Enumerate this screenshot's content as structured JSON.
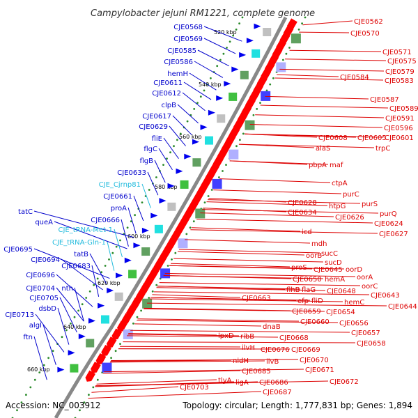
{
  "title": "Campylobacter jejuni RM1221, complete genome",
  "footer": {
    "accession": "Accession: NC_003912",
    "summary": "Topology: circular; Length: 1,777,831 bp; Genes: 1,894"
  },
  "colors": {
    "forward_labels": "#0000cc",
    "rna_labels": "#22bbdd",
    "reverse_labels": "#dd0000",
    "backbone": "#888888",
    "tick_dots": "#2a8a2a"
  },
  "kbp_marks": [
    "520 kbp",
    "540 kbp",
    "560 kbp",
    "580 kbp",
    "600 kbp",
    "620 kbp",
    "640 kbp",
    "660 kbp"
  ],
  "left_labels": [
    {
      "text": "CJE0568",
      "type": "gene"
    },
    {
      "text": "CJE0569",
      "type": "gene"
    },
    {
      "text": "CJE0585",
      "type": "gene"
    },
    {
      "text": "CJE0586",
      "type": "gene"
    },
    {
      "text": "hemH",
      "type": "gene"
    },
    {
      "text": "CJE0611",
      "type": "gene"
    },
    {
      "text": "CJE0612",
      "type": "gene"
    },
    {
      "text": "clpB",
      "type": "gene"
    },
    {
      "text": "CJE0617",
      "type": "gene"
    },
    {
      "text": "CJE0629",
      "type": "gene"
    },
    {
      "text": "fliE",
      "type": "gene"
    },
    {
      "text": "flgC",
      "type": "gene"
    },
    {
      "text": "flgB",
      "type": "gene"
    },
    {
      "text": "CJE0633",
      "type": "gene"
    },
    {
      "text": "CJE_Cjrnp81",
      "type": "rna"
    },
    {
      "text": "CJE0661",
      "type": "gene"
    },
    {
      "text": "proA",
      "type": "gene"
    },
    {
      "text": "tatC",
      "type": "gene"
    },
    {
      "text": "queA",
      "type": "gene"
    },
    {
      "text": "CJE0666",
      "type": "gene"
    },
    {
      "text": "CJE_tRNA-Met-1",
      "type": "rna"
    },
    {
      "text": "CJE_tRNA-Gln-1",
      "type": "rna"
    },
    {
      "text": "CJE0695",
      "type": "gene"
    },
    {
      "text": "tatB",
      "type": "gene"
    },
    {
      "text": "CJE0694",
      "type": "gene"
    },
    {
      "text": "CJE0683",
      "type": "gene"
    },
    {
      "text": "CJE0696",
      "type": "gene"
    },
    {
      "text": "CJE0704",
      "type": "gene"
    },
    {
      "text": "nth",
      "type": "gene"
    },
    {
      "text": "CJE0705",
      "type": "gene"
    },
    {
      "text": "dsbD",
      "type": "gene"
    },
    {
      "text": "CJE0713",
      "type": "gene"
    },
    {
      "text": "algI",
      "type": "gene"
    },
    {
      "text": "ftn",
      "type": "gene"
    }
  ],
  "right_labels": [
    {
      "text": "CJE0562"
    },
    {
      "text": "CJE0570"
    },
    {
      "text": "CJE0571"
    },
    {
      "text": "CJE0575"
    },
    {
      "text": "CJE0579"
    },
    {
      "text": "CJE0584"
    },
    {
      "text": "CJE0583"
    },
    {
      "text": "CJE0587"
    },
    {
      "text": "CJE0589"
    },
    {
      "text": "CJE0591"
    },
    {
      "text": "CJE0596"
    },
    {
      "text": "CJE0608"
    },
    {
      "text": "CJE0605"
    },
    {
      "text": "CJE0601"
    },
    {
      "text": "alaS"
    },
    {
      "text": "trpC"
    },
    {
      "text": "pbpA"
    },
    {
      "text": "maf"
    },
    {
      "text": "ctpA"
    },
    {
      "text": "purC"
    },
    {
      "text": "CJE0628"
    },
    {
      "text": "htpG"
    },
    {
      "text": "purS"
    },
    {
      "text": "CJE0634"
    },
    {
      "text": "CJE0626"
    },
    {
      "text": "purQ"
    },
    {
      "text": "CJE0624"
    },
    {
      "text": "CJE0627"
    },
    {
      "text": "icd"
    },
    {
      "text": "mdh"
    },
    {
      "text": "sucC"
    },
    {
      "text": "sucD"
    },
    {
      "text": "proS"
    },
    {
      "text": "CJE0645"
    },
    {
      "text": "oorD"
    },
    {
      "text": "oorB"
    },
    {
      "text": "CJE0650"
    },
    {
      "text": "hemA"
    },
    {
      "text": "oorA"
    },
    {
      "text": "flhB"
    },
    {
      "text": "flaG"
    },
    {
      "text": "CJE0648"
    },
    {
      "text": "oorC"
    },
    {
      "text": "CJE0643"
    },
    {
      "text": "CJE0663"
    },
    {
      "text": "efp"
    },
    {
      "text": "fliD"
    },
    {
      "text": "hemC"
    },
    {
      "text": "CJE0644"
    },
    {
      "text": "CJE0659"
    },
    {
      "text": "CJE0654"
    },
    {
      "text": "CJE0660"
    },
    {
      "text": "CJE0656"
    },
    {
      "text": "dnaB"
    },
    {
      "text": "CJE0657"
    },
    {
      "text": "lpxD"
    },
    {
      "text": "ribB"
    },
    {
      "text": "CJE0668"
    },
    {
      "text": "CJE0658"
    },
    {
      "text": "ilvH"
    },
    {
      "text": "CJE0676"
    },
    {
      "text": "CJE0669"
    },
    {
      "text": "nidH"
    },
    {
      "text": "ilvB"
    },
    {
      "text": "CJE0670"
    },
    {
      "text": "CJE0685"
    },
    {
      "text": "CJE0671"
    },
    {
      "text": "tlyA"
    },
    {
      "text": "ligA"
    },
    {
      "text": "CJE0686"
    },
    {
      "text": "CJE0672"
    },
    {
      "text": "CJE0703"
    },
    {
      "text": "CJE0687"
    }
  ]
}
